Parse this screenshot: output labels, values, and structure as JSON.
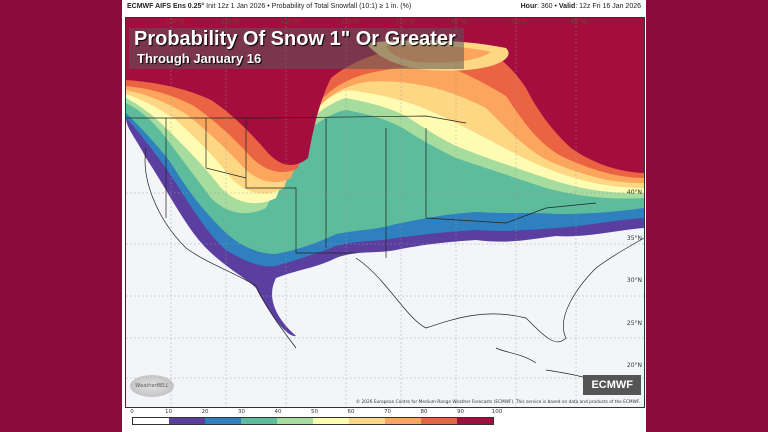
{
  "header": {
    "model": "ECMWF AIFS Ens 0.25°",
    "init": "Init 12z 1 Jan 2026",
    "product": "Probability of Total Snowfall (10:1) ≥ 1 in. (%)",
    "hour_label": "Hour",
    "hour": ": 360",
    "valid_label": "Valid",
    "valid": ": 12z Fri 16 Jan 2026"
  },
  "overlay": {
    "title": "Probability Of Snow 1\" Or Greater",
    "subtitle": "Through January 16"
  },
  "map": {
    "lon_labels": [
      "120°W",
      "115°W",
      "110°W",
      "105°W",
      "100°W",
      "95°W",
      "90°W",
      "85°W"
    ],
    "lat_labels": [
      "40°N",
      "35°N",
      "30°N",
      "25°N",
      "20°N"
    ],
    "logo": "WeatherBELL",
    "brand": "ECMWF",
    "credit": "© 2026 European Centre for Medium-Range Weather Forecasts (ECMWF). This service is based on data and products of the ECMWF."
  },
  "colorbar": {
    "ticks": [
      "0",
      "10",
      "20",
      "30",
      "40",
      "50",
      "60",
      "70",
      "80",
      "90",
      "100"
    ],
    "colors": [
      "#ffffff",
      "#5a3fa0",
      "#2f80be",
      "#5cbc9c",
      "#a6dc9e",
      "#fefcb2",
      "#fdd783",
      "#fca55c",
      "#ea6342",
      "#a50d3e"
    ]
  },
  "background_color": "#8c0b3d"
}
